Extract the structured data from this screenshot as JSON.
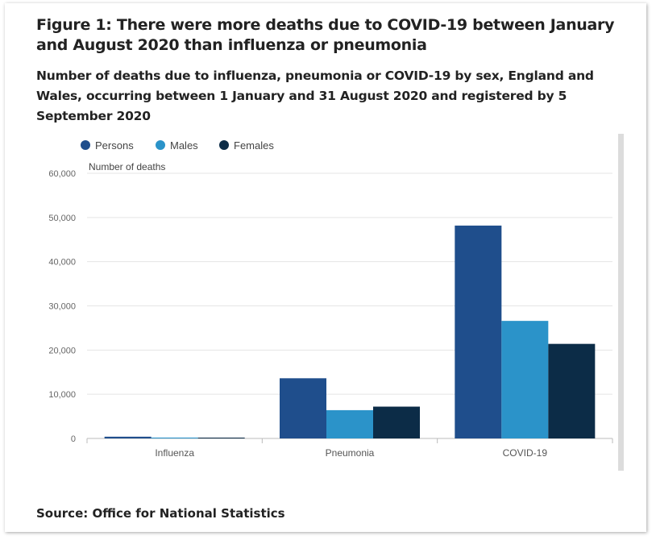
{
  "title": "Figure 1: There were more deaths due to COVID-19 between January and August 2020 than influenza or pneumonia",
  "subtitle": "Number of deaths due to influenza, pneumonia or COVID-19 by sex, England and Wales, occurring between 1 January and 31 August 2020 and registered by 5 September 2020",
  "source": "Source: Office for National Statistics",
  "colors": {
    "persons": "#1f4e8c",
    "males": "#2b93c9",
    "females": "#0c2c47",
    "grid": "#e5e5e5",
    "axis": "#bbbbbb"
  },
  "chart_data": {
    "type": "bar",
    "title": "",
    "xlabel": "",
    "ylabel": "Number of deaths",
    "ylim": [
      0,
      60000
    ],
    "yticks": [
      0,
      10000,
      20000,
      30000,
      40000,
      50000,
      60000
    ],
    "ytick_labels": [
      "0",
      "10,000",
      "20,000",
      "30,000",
      "40,000",
      "50,000",
      "60,000"
    ],
    "categories": [
      "Influenza",
      "Pneumonia",
      "COVID-19"
    ],
    "series": [
      {
        "name": "Persons",
        "values": [
          394,
          13619,
          48168
        ]
      },
      {
        "name": "Males",
        "values": [
          200,
          6400,
          26600
        ]
      },
      {
        "name": "Females",
        "values": [
          190,
          7200,
          21400
        ]
      }
    ],
    "legend": "top-left",
    "grid": true
  }
}
